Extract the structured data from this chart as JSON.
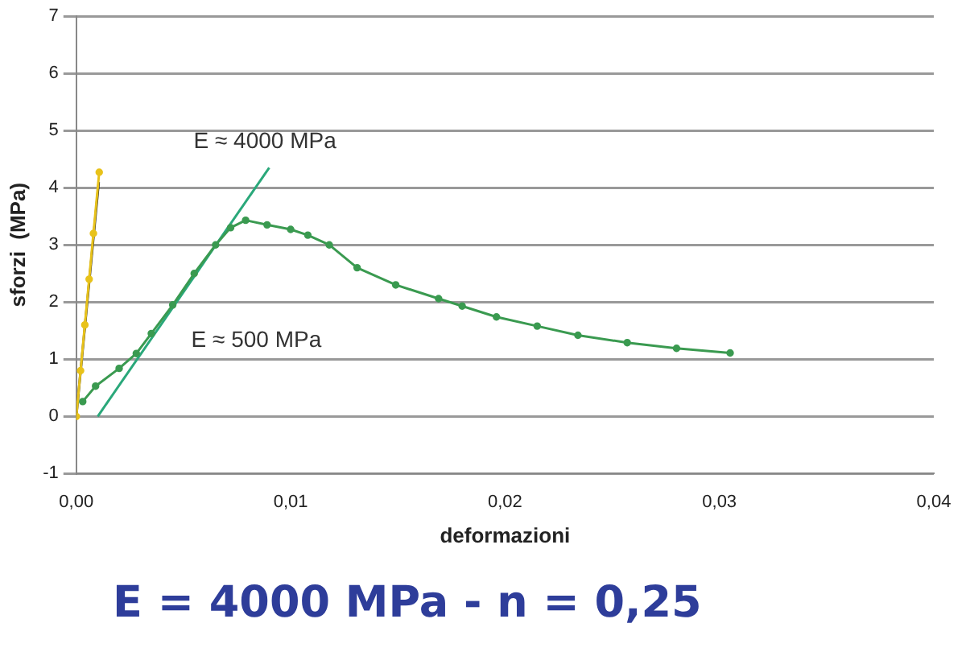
{
  "chart_data": {
    "type": "line",
    "xlabel": "deformazioni",
    "ylabel": "sforzi  (MPa)",
    "xlim": [
      0,
      0.04
    ],
    "ylim": [
      -1,
      7
    ],
    "xticks": [
      {
        "value": 0,
        "label": "0,00"
      },
      {
        "value": 0.01,
        "label": "0,01"
      },
      {
        "value": 0.02,
        "label": "0,02"
      },
      {
        "value": 0.03,
        "label": "0,03"
      },
      {
        "value": 0.04,
        "label": "0,04"
      }
    ],
    "yticks": [
      -1,
      0,
      1,
      2,
      3,
      4,
      5,
      6,
      7
    ],
    "grid": "y",
    "legend": false,
    "series": [
      {
        "color": "#e8c21a",
        "marker": "circle",
        "x": [
          0,
          0.0002,
          0.0004,
          0.0006,
          0.0008,
          0.00107
        ],
        "values": [
          0,
          0.8,
          1.6,
          2.4,
          3.2,
          4.27
        ]
      },
      {
        "color": "#2b2b2b",
        "marker": "none",
        "x": [
          0,
          0.00105
        ],
        "values": [
          0,
          4.1
        ]
      },
      {
        "color": "#3a9a50",
        "marker": "circle",
        "x": [
          0.0003,
          0.0009,
          0.002,
          0.0028,
          0.0035,
          0.0045,
          0.0055,
          0.0065,
          0.0072,
          0.0079,
          0.0089,
          0.01,
          0.0108,
          0.0118,
          0.0131,
          0.0149,
          0.0169,
          0.018,
          0.0196,
          0.0215,
          0.0234,
          0.0257,
          0.028,
          0.0305
        ],
        "values": [
          0.26,
          0.53,
          0.84,
          1.1,
          1.45,
          1.95,
          2.5,
          3.0,
          3.3,
          3.43,
          3.35,
          3.27,
          3.17,
          3.0,
          2.6,
          2.3,
          2.06,
          1.93,
          1.74,
          1.58,
          1.42,
          1.29,
          1.19,
          1.11
        ]
      },
      {
        "color": "#2aa87a",
        "marker": "none",
        "x": [
          0.001,
          0.009
        ],
        "values": [
          0,
          4.35
        ]
      }
    ],
    "annotations": [
      "E ≈ 4000 MPa",
      "E ≈ 500 MPa",
      "E = 4000 MPa  - n = 0,25"
    ]
  }
}
